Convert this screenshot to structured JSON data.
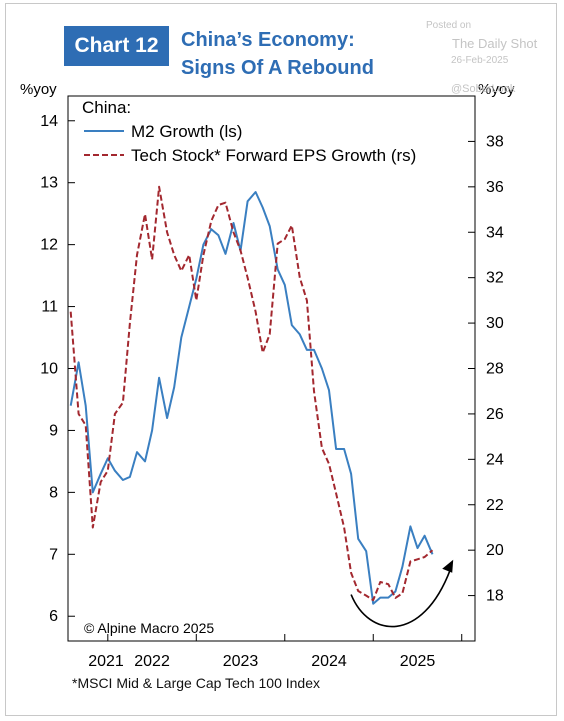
{
  "header": {
    "badge": "Chart 12",
    "title_line1": "China’s Economy:",
    "title_line2": "Signs Of A Rebound"
  },
  "watermark": {
    "posted_on": "Posted on",
    "source": "The Daily Shot",
    "date": "26-Feb-2025",
    "handle": "@SoberLook"
  },
  "footnote": "*MSCI Mid & Large Cap Tech 100 Index",
  "copyright": "© Alpine Macro 2025",
  "colors": {
    "m2": "#3a7fc1",
    "eps": "#a3282f",
    "accent": "#2e6db4",
    "arrow": "#000000"
  },
  "chart_data": {
    "type": "line",
    "legend_title": "China:",
    "legend_position": "top-left",
    "grid": false,
    "left_axis_label": "%yoy",
    "right_axis_label": "%yoy",
    "left_ylim": [
      5.6,
      14.4
    ],
    "right_ylim": [
      16.0,
      40.0
    ],
    "xlim": [
      2020.55,
      2025.15
    ],
    "left_ticks": [
      "14",
      "13",
      "12",
      "11",
      "10",
      "9",
      "8",
      "7",
      "6"
    ],
    "right_ticks": [
      "38",
      "36",
      "34",
      "32",
      "30",
      "28",
      "26",
      "24",
      "22",
      "20",
      "18"
    ],
    "year_labels": [
      "2021",
      "2022",
      "2023",
      "2024",
      "2025"
    ],
    "series": [
      {
        "name": "M2 Growth (ls)",
        "axis": "left",
        "style": "solid",
        "points": [
          [
            2020.58,
            9.4
          ],
          [
            2020.67,
            10.1
          ],
          [
            2020.75,
            9.4
          ],
          [
            2020.83,
            8.0
          ],
          [
            2020.92,
            8.3
          ],
          [
            2021.0,
            8.55
          ],
          [
            2021.08,
            8.35
          ],
          [
            2021.17,
            8.2
          ],
          [
            2021.25,
            8.25
          ],
          [
            2021.33,
            8.65
          ],
          [
            2021.42,
            8.5
          ],
          [
            2021.5,
            9.0
          ],
          [
            2021.58,
            9.85
          ],
          [
            2021.67,
            9.2
          ],
          [
            2021.75,
            9.7
          ],
          [
            2021.83,
            10.5
          ],
          [
            2021.92,
            11.0
          ],
          [
            2022.0,
            11.45
          ],
          [
            2022.08,
            12.0
          ],
          [
            2022.17,
            12.25
          ],
          [
            2022.25,
            12.15
          ],
          [
            2022.33,
            11.85
          ],
          [
            2022.42,
            12.35
          ],
          [
            2022.5,
            11.9
          ],
          [
            2022.58,
            12.7
          ],
          [
            2022.67,
            12.85
          ],
          [
            2022.75,
            12.6
          ],
          [
            2022.83,
            12.3
          ],
          [
            2022.92,
            11.6
          ],
          [
            2023.0,
            11.35
          ],
          [
            2023.08,
            10.7
          ],
          [
            2023.17,
            10.55
          ],
          [
            2023.25,
            10.3
          ],
          [
            2023.33,
            10.3
          ],
          [
            2023.42,
            10.0
          ],
          [
            2023.5,
            9.65
          ],
          [
            2023.58,
            8.7
          ],
          [
            2023.67,
            8.7
          ],
          [
            2023.75,
            8.3
          ],
          [
            2023.83,
            7.25
          ],
          [
            2023.92,
            7.05
          ],
          [
            2024.0,
            6.2
          ],
          [
            2024.08,
            6.3
          ],
          [
            2024.17,
            6.3
          ],
          [
            2024.25,
            6.4
          ],
          [
            2024.33,
            6.8
          ],
          [
            2024.42,
            7.45
          ],
          [
            2024.5,
            7.1
          ],
          [
            2024.58,
            7.3
          ],
          [
            2024.67,
            7.0
          ]
        ]
      },
      {
        "name": "Tech Stock* Forward EPS Growth (rs)",
        "axis": "right",
        "style": "dashed",
        "points": [
          [
            2020.58,
            30.5
          ],
          [
            2020.67,
            26.0
          ],
          [
            2020.75,
            25.5
          ],
          [
            2020.83,
            21.0
          ],
          [
            2020.92,
            23.0
          ],
          [
            2021.0,
            23.5
          ],
          [
            2021.08,
            26.0
          ],
          [
            2021.17,
            26.5
          ],
          [
            2021.25,
            30.0
          ],
          [
            2021.33,
            33.0
          ],
          [
            2021.42,
            34.8
          ],
          [
            2021.5,
            32.8
          ],
          [
            2021.58,
            36.0
          ],
          [
            2021.67,
            34.0
          ],
          [
            2021.75,
            33.0
          ],
          [
            2021.83,
            32.3
          ],
          [
            2021.92,
            33.0
          ],
          [
            2022.0,
            31.0
          ],
          [
            2022.08,
            33.0
          ],
          [
            2022.17,
            34.5
          ],
          [
            2022.25,
            35.2
          ],
          [
            2022.33,
            35.3
          ],
          [
            2022.42,
            34.0
          ],
          [
            2022.5,
            33.2
          ],
          [
            2022.58,
            32.0
          ],
          [
            2022.67,
            30.5
          ],
          [
            2022.75,
            28.7
          ],
          [
            2022.83,
            29.5
          ],
          [
            2022.92,
            33.5
          ],
          [
            2023.0,
            33.7
          ],
          [
            2023.08,
            34.3
          ],
          [
            2023.17,
            32.0
          ],
          [
            2023.25,
            31.0
          ],
          [
            2023.33,
            27.0
          ],
          [
            2023.42,
            24.5
          ],
          [
            2023.5,
            23.8
          ],
          [
            2023.58,
            22.5
          ],
          [
            2023.67,
            21.0
          ],
          [
            2023.75,
            19.0
          ],
          [
            2023.83,
            18.2
          ],
          [
            2023.92,
            18.0
          ],
          [
            2024.0,
            17.8
          ],
          [
            2024.08,
            18.6
          ],
          [
            2024.17,
            18.5
          ],
          [
            2024.25,
            17.9
          ],
          [
            2024.33,
            18.1
          ],
          [
            2024.42,
            19.5
          ],
          [
            2024.5,
            19.6
          ],
          [
            2024.58,
            19.7
          ],
          [
            2024.67,
            20.0
          ]
        ]
      }
    ],
    "annotation": "rebound-arrow"
  }
}
